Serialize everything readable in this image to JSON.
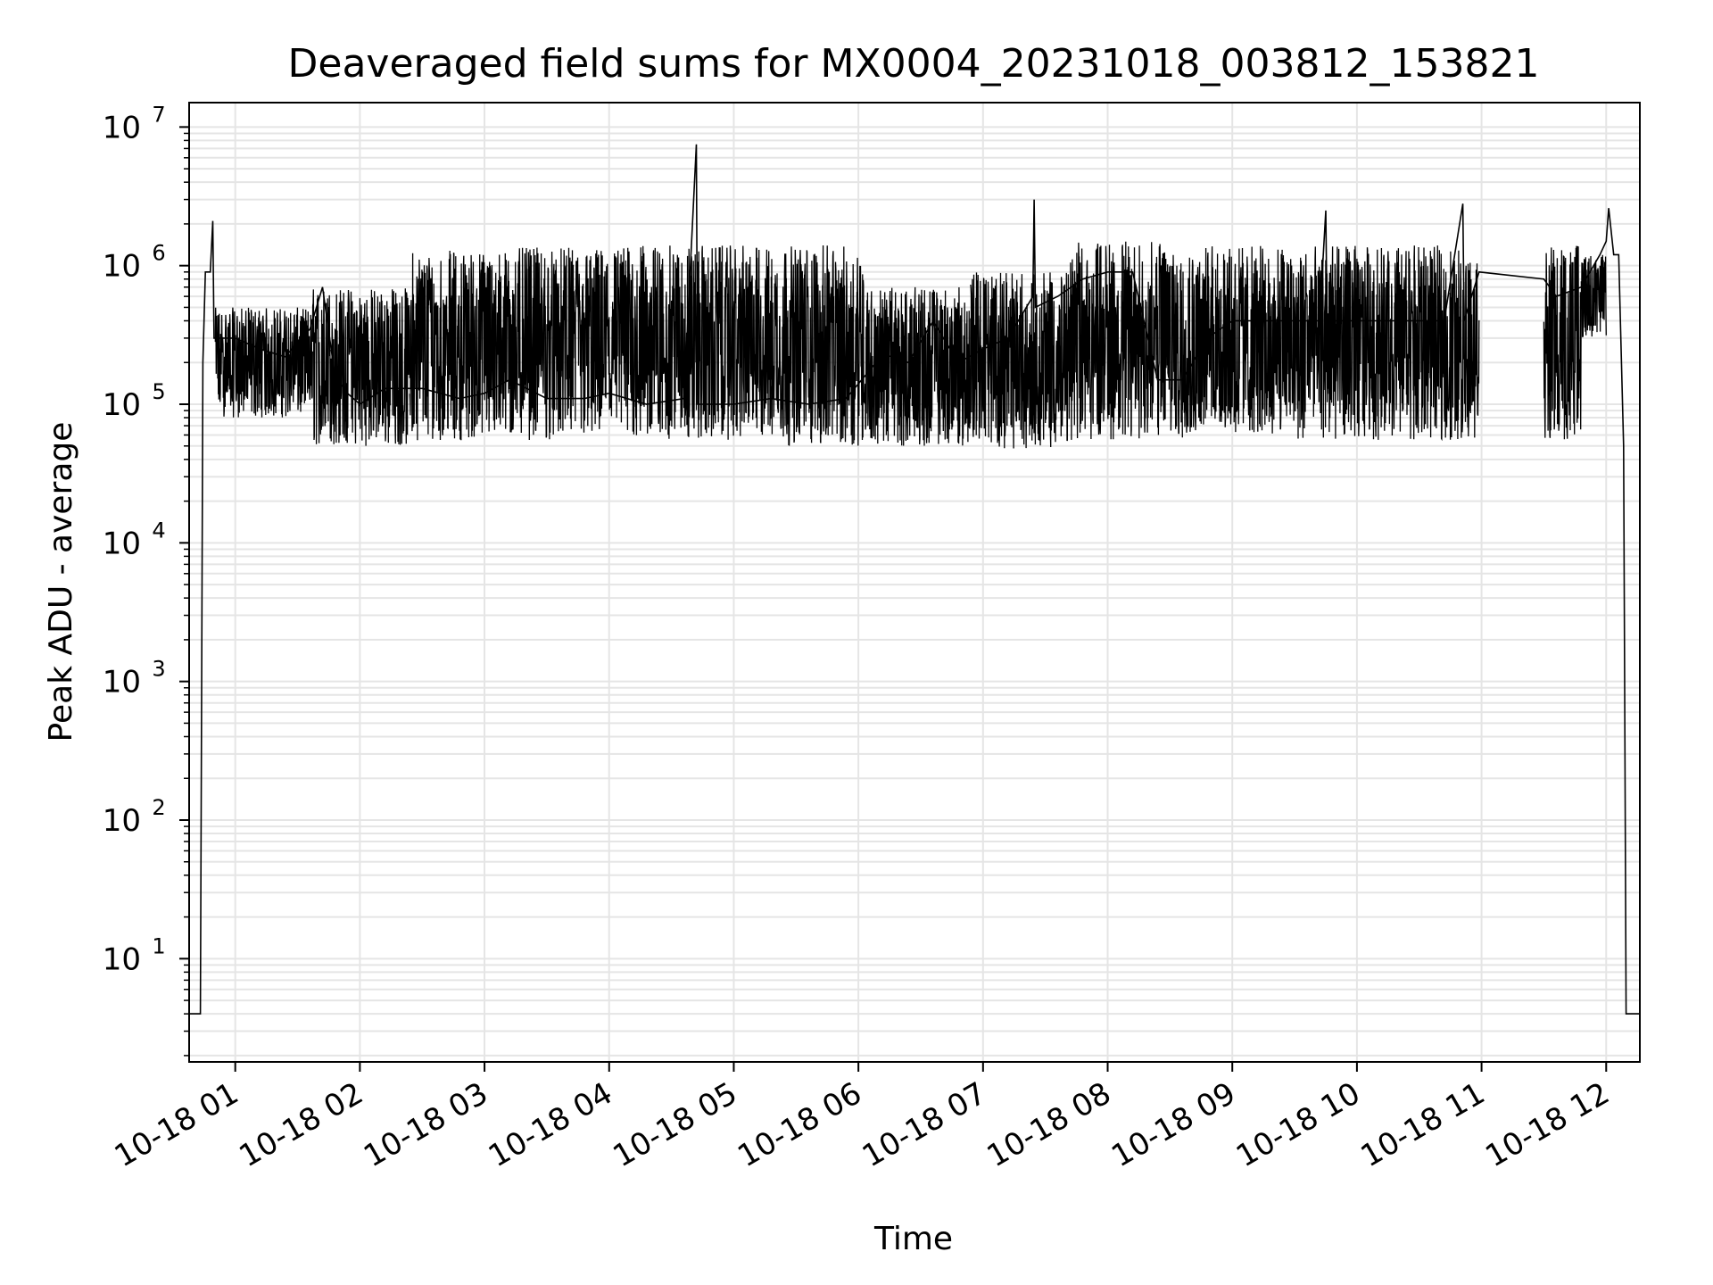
{
  "chart_data": {
    "type": "line",
    "title": "Deaveraged field sums for MX0004_20231018_003812_153821",
    "xlabel": "Time",
    "ylabel": "Peak ADU - average",
    "yscale": "log",
    "grid": true,
    "line_color": "#000000",
    "grid_color": "#e5e5e5",
    "x_ticks": [
      "10-18 01",
      "10-18 02",
      "10-18 03",
      "10-18 04",
      "10-18 05",
      "10-18 06",
      "10-18 07",
      "10-18 08",
      "10-18 09",
      "10-18 10",
      "10-18 11",
      "10-18 12"
    ],
    "x_tick_hours": [
      1,
      2,
      3,
      4,
      5,
      6,
      7,
      8,
      9,
      10,
      11,
      12
    ],
    "xlim_hours": [
      0.63,
      12.27
    ],
    "y_ticks": [
      {
        "base": "10",
        "exp": "1",
        "value": 10
      },
      {
        "base": "10",
        "exp": "2",
        "value": 100
      },
      {
        "base": "10",
        "exp": "3",
        "value": 1000
      },
      {
        "base": "10",
        "exp": "4",
        "value": 10000
      },
      {
        "base": "10",
        "exp": "5",
        "value": 100000
      },
      {
        "base": "10",
        "exp": "6",
        "value": 1000000
      },
      {
        "base": "10",
        "exp": "7",
        "value": 10000000
      }
    ],
    "ylim": [
      1.8,
      15000000
    ],
    "series": [
      {
        "points_hours": [
          [
            0.63,
            4
          ],
          [
            0.7,
            4
          ],
          [
            0.72,
            4
          ],
          [
            0.74,
            200000
          ],
          [
            0.76,
            900000
          ],
          [
            0.8,
            900000
          ],
          [
            0.82,
            2100000
          ],
          [
            0.83,
            300000
          ],
          [
            0.9,
            300000
          ],
          [
            1.0,
            300000
          ],
          [
            1.2,
            250000
          ],
          [
            1.4,
            220000
          ],
          [
            1.6,
            350000
          ],
          [
            1.7,
            700000
          ],
          [
            1.8,
            160000
          ],
          [
            1.9,
            120000
          ],
          [
            2.0,
            100000
          ],
          [
            2.2,
            130000
          ],
          [
            2.5,
            130000
          ],
          [
            2.8,
            110000
          ],
          [
            3.0,
            120000
          ],
          [
            3.2,
            150000
          ],
          [
            3.5,
            110000
          ],
          [
            3.8,
            110000
          ],
          [
            4.0,
            120000
          ],
          [
            4.3,
            100000
          ],
          [
            4.6,
            110000
          ],
          [
            4.7,
            7500000
          ],
          [
            4.71,
            100000
          ],
          [
            5.0,
            100000
          ],
          [
            5.3,
            110000
          ],
          [
            5.6,
            100000
          ],
          [
            5.9,
            110000
          ],
          [
            6.2,
            230000
          ],
          [
            6.4,
            200000
          ],
          [
            6.6,
            400000
          ],
          [
            6.8,
            200000
          ],
          [
            7.0,
            250000
          ],
          [
            7.2,
            300000
          ],
          [
            7.4,
            600000
          ],
          [
            7.41,
            3000000
          ],
          [
            7.42,
            500000
          ],
          [
            7.6,
            600000
          ],
          [
            7.8,
            800000
          ],
          [
            8.0,
            900000
          ],
          [
            8.2,
            900000
          ],
          [
            8.4,
            150000
          ],
          [
            8.6,
            150000
          ],
          [
            8.8,
            300000
          ],
          [
            9.0,
            400000
          ],
          [
            9.2,
            400000
          ],
          [
            9.5,
            400000
          ],
          [
            9.7,
            400000
          ],
          [
            9.75,
            2500000
          ],
          [
            9.76,
            400000
          ],
          [
            9.9,
            400000
          ],
          [
            10.1,
            400000
          ],
          [
            10.4,
            400000
          ],
          [
            10.7,
            400000
          ],
          [
            10.85,
            2800000
          ],
          [
            10.86,
            400000
          ],
          [
            10.98,
            900000
          ],
          [
            11.5,
            800000
          ],
          [
            11.6,
            600000
          ],
          [
            11.8,
            700000
          ],
          [
            11.95,
            1200000
          ],
          [
            12.0,
            1500000
          ],
          [
            12.02,
            2600000
          ],
          [
            12.06,
            1200000
          ],
          [
            12.1,
            1200000
          ],
          [
            12.14,
            50000
          ],
          [
            12.16,
            4
          ],
          [
            12.27,
            4
          ]
        ],
        "bands": [
          {
            "start": 0.84,
            "end": 1.62,
            "low": 80000,
            "high": 500000
          },
          {
            "start": 1.62,
            "end": 2.4,
            "low": 50000,
            "high": 700000
          },
          {
            "start": 2.4,
            "end": 3.2,
            "low": 55000,
            "high": 1300000
          },
          {
            "start": 3.2,
            "end": 3.95,
            "low": 55000,
            "high": 1350000
          },
          {
            "start": 3.95,
            "end": 5.3,
            "low": 55000,
            "high": 1400000
          },
          {
            "start": 5.3,
            "end": 6.05,
            "low": 50000,
            "high": 1400000
          },
          {
            "start": 6.05,
            "end": 6.9,
            "low": 50000,
            "high": 700000
          },
          {
            "start": 6.9,
            "end": 7.7,
            "low": 48000,
            "high": 900000
          },
          {
            "start": 7.7,
            "end": 8.6,
            "low": 55000,
            "high": 1500000
          },
          {
            "start": 8.6,
            "end": 9.4,
            "low": 60000,
            "high": 1400000
          },
          {
            "start": 9.4,
            "end": 10.98,
            "low": 55000,
            "high": 1400000
          },
          {
            "start": 11.5,
            "end": 11.8,
            "low": 55000,
            "high": 1400000
          },
          {
            "start": 11.8,
            "end": 12.0,
            "low": 300000,
            "high": 1200000
          }
        ]
      }
    ]
  }
}
